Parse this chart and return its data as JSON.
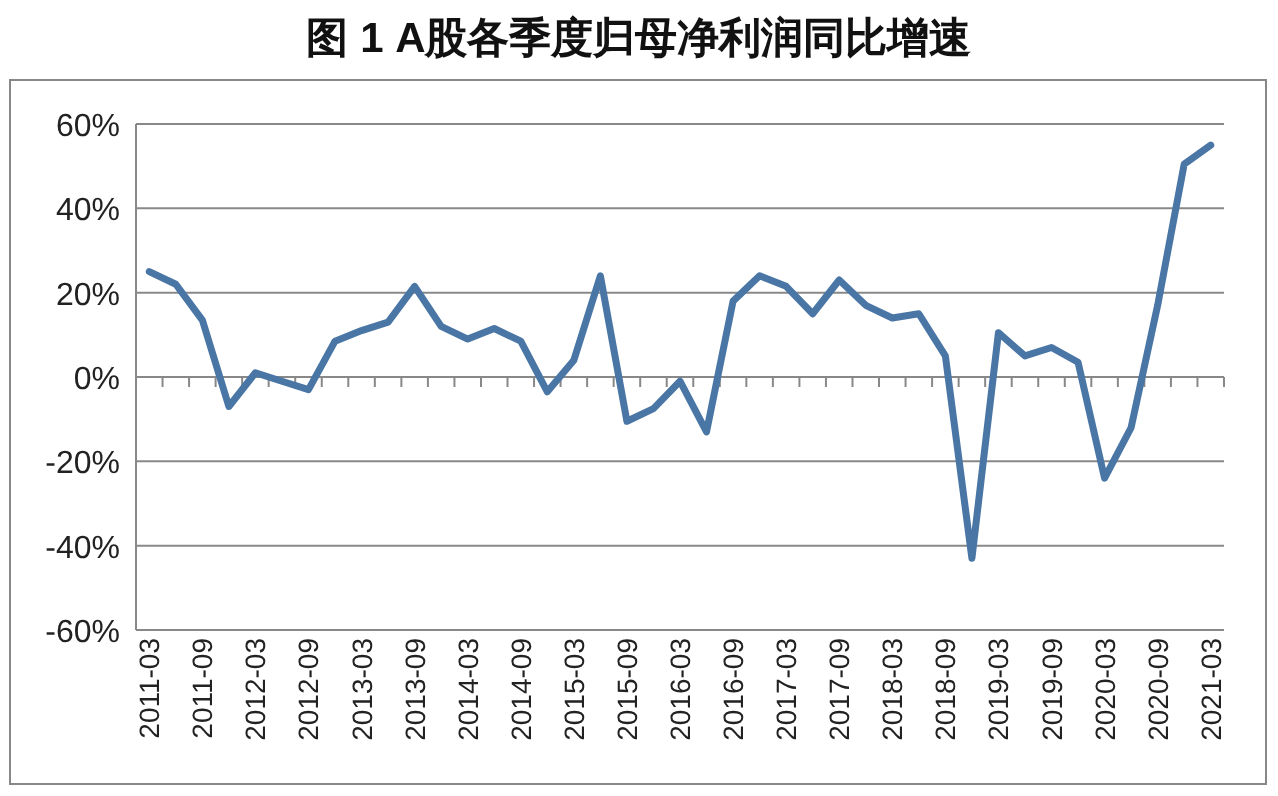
{
  "chart_data": {
    "type": "line",
    "title": "图 1 A股各季度归母净利润同比增速",
    "categories": [
      "2011-03",
      null,
      "2011-09",
      null,
      "2012-03",
      null,
      "2012-09",
      null,
      "2013-03",
      null,
      "2013-09",
      null,
      "2014-03",
      null,
      "2014-09",
      null,
      "2015-03",
      null,
      "2015-09",
      null,
      "2016-03",
      null,
      "2016-09",
      null,
      "2017-03",
      null,
      "2017-09",
      null,
      "2018-03",
      null,
      "2018-09",
      null,
      "2019-03",
      null,
      "2019-09",
      null,
      "2020-03",
      null,
      "2020-09",
      null,
      "2021-03"
    ],
    "series": [
      {
        "color": "#4a76a6",
        "values": [
          25,
          22,
          13.5,
          -7,
          1,
          -1,
          -3,
          8.5,
          11,
          13,
          21.5,
          12,
          9,
          11.5,
          8.5,
          -3.5,
          4,
          24,
          -10.5,
          -7.5,
          -1,
          -13,
          18,
          24,
          21.5,
          15,
          23,
          17,
          14,
          15,
          5,
          -43,
          10.5,
          5,
          7,
          3.5,
          -24,
          -12,
          17,
          50.5,
          55
        ]
      }
    ],
    "ylim": [
      -60,
      60
    ],
    "yticks": [
      {
        "value": -60,
        "label": "-60%"
      },
      {
        "value": -40,
        "label": "-40%"
      },
      {
        "value": -20,
        "label": "-20%"
      },
      {
        "value": 0,
        "label": "0%"
      },
      {
        "value": 20,
        "label": "20%"
      },
      {
        "value": 40,
        "label": "40%"
      },
      {
        "value": 60,
        "label": "60%"
      }
    ],
    "grid": "y",
    "marker": "none",
    "line_style": "solid"
  }
}
